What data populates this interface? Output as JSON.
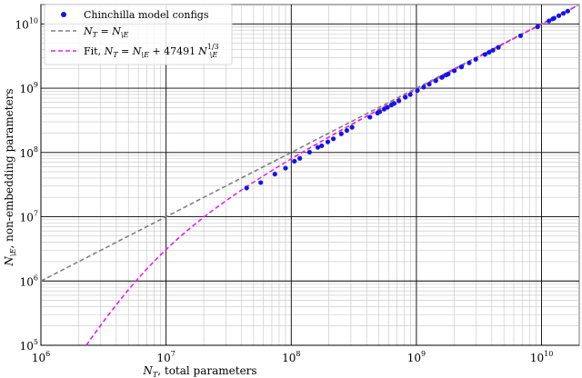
{
  "chart_data": {
    "type": "scatter",
    "xscale": "log",
    "yscale": "log",
    "xlim": [
      1000000,
      20000000000
    ],
    "ylim": [
      100000,
      20000000000
    ],
    "grid": true,
    "legend_placement": "top-left",
    "xlabel": {
      "symbol": "N",
      "subscript": "T",
      "text": ", total parameters"
    },
    "ylabel": {
      "symbol": "N",
      "subscript": "\\E",
      "text": ", non-embedding parameters"
    },
    "x_ticks": [
      {
        "value": 1000000,
        "base": "10",
        "exp": "6"
      },
      {
        "value": 10000000,
        "base": "10",
        "exp": "7"
      },
      {
        "value": 100000000,
        "base": "10",
        "exp": "8"
      },
      {
        "value": 1000000000,
        "base": "10",
        "exp": "9"
      },
      {
        "value": 10000000000,
        "base": "10",
        "exp": "10"
      }
    ],
    "y_ticks": [
      {
        "value": 100000,
        "base": "10",
        "exp": "5"
      },
      {
        "value": 1000000,
        "base": "10",
        "exp": "6"
      },
      {
        "value": 10000000,
        "base": "10",
        "exp": "7"
      },
      {
        "value": 100000000,
        "base": "10",
        "exp": "8"
      },
      {
        "value": 1000000000,
        "base": "10",
        "exp": "9"
      },
      {
        "value": 10000000000,
        "base": "10",
        "exp": "10"
      }
    ],
    "series": [
      {
        "name": "Chinchilla model configs",
        "kind": "scatter",
        "color": "#1515e6",
        "points": [
          [
            44000000,
            28000000
          ],
          [
            57000000,
            34000000
          ],
          [
            74000000,
            46000000
          ],
          [
            90000000,
            57000000
          ],
          [
            106000000,
            73000000
          ],
          [
            117000000,
            81000000
          ],
          [
            140000000,
            101000000
          ],
          [
            163000000,
            120000000
          ],
          [
            175000000,
            127000000
          ],
          [
            196000000,
            146000000
          ],
          [
            217000000,
            163000000
          ],
          [
            251000000,
            195000000
          ],
          [
            278000000,
            220000000
          ],
          [
            306000000,
            246000000
          ],
          [
            425000000,
            354000000
          ],
          [
            489000000,
            411000000
          ],
          [
            509000000,
            430000000
          ],
          [
            552000000,
            471000000
          ],
          [
            587000000,
            504000000
          ],
          [
            632000000,
            547000000
          ],
          [
            664000000,
            578000000
          ],
          [
            724000000,
            635000000
          ],
          [
            816000000,
            722000000
          ],
          [
            893000000,
            795000000
          ],
          [
            1018000000,
            917000000
          ],
          [
            1143000000,
            1037000000
          ],
          [
            1266000000,
            1154000000
          ],
          [
            1424000000,
            1306000000
          ],
          [
            1429000000,
            1311000000
          ],
          [
            1593000000,
            1469000000
          ],
          [
            1609000000,
            1484000000
          ],
          [
            1731000000,
            1602000000
          ],
          [
            1794000000,
            1663000000
          ],
          [
            2007000000,
            1869000000
          ],
          [
            2283000000,
            2136000000
          ],
          [
            2298000000,
            2150000000
          ],
          [
            2639000000,
            2481000000
          ],
          [
            2980000000,
            2812000000
          ],
          [
            3530000000,
            3348000000
          ],
          [
            3802000000,
            3613000000
          ],
          [
            4084000000,
            3889000000
          ],
          [
            4516000000,
            4311000000
          ],
          [
            6796000000,
            6549000000
          ],
          [
            9293000000,
            9007000000
          ],
          [
            11452000000,
            11136000000
          ],
          [
            12295000000,
            11968000000
          ],
          [
            12569000000,
            12239000000
          ],
          [
            13735000000,
            13390000000
          ],
          [
            14940000000,
            14580000000
          ],
          [
            16183000000,
            15810000000
          ]
        ]
      },
      {
        "name": "N_T = N_\\E",
        "kind": "line",
        "color": "#808080",
        "dash": "dashed",
        "equation": "N_T = N_\\E"
      },
      {
        "name": "Fit, N_T = N_\\E + 47491 N_\\E^1/3",
        "kind": "line",
        "color": "#e61ee6",
        "dash": "dashed",
        "coefficient": 47491,
        "exponent": 0.3333333,
        "equation": "N_T = N_\\E + 47491 N_\\E^1/3"
      }
    ],
    "legend": {
      "entries": [
        {
          "label": "Chinchilla model configs"
        },
        {
          "lhs": "N",
          "lhs_sub": "T",
          "op": " = ",
          "rhs": "N",
          "rhs_sub": "\\E"
        },
        {
          "prefix": "Fit, ",
          "lhs": "N",
          "lhs_sub": "T",
          "op": " = ",
          "rhs": "N",
          "rhs_sub": "\\E",
          "plus": " + 47491",
          "term": "N",
          "term_sub": "\\E",
          "term_sup": "1/3"
        }
      ]
    }
  }
}
